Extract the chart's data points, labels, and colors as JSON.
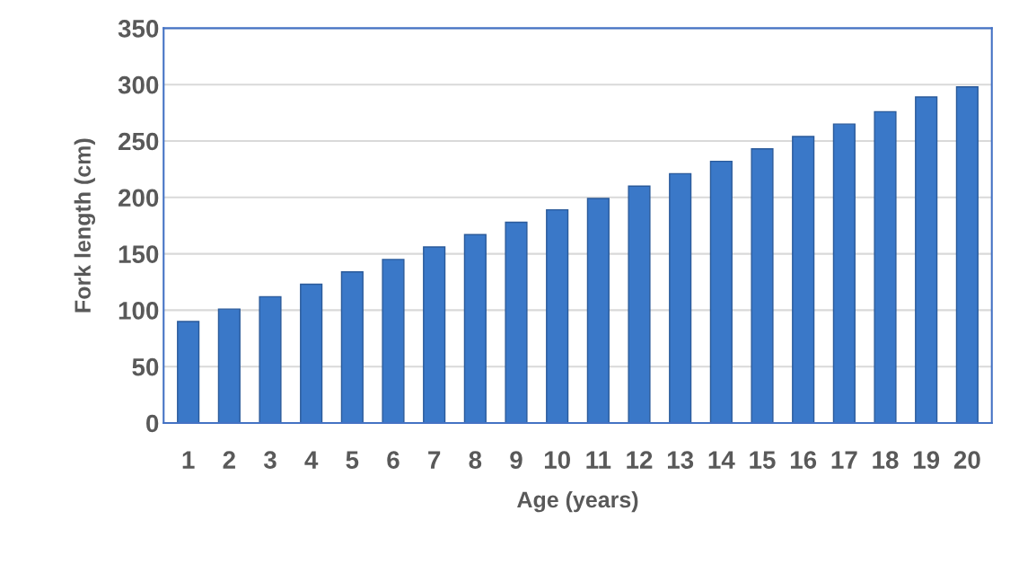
{
  "chart_data": {
    "type": "bar",
    "xlabel": "Age (years)",
    "ylabel": "Fork length (cm)",
    "categories": [
      "1",
      "2",
      "3",
      "4",
      "5",
      "6",
      "7",
      "8",
      "9",
      "10",
      "11",
      "12",
      "13",
      "14",
      "15",
      "16",
      "17",
      "18",
      "19",
      "20"
    ],
    "values": [
      90,
      101,
      112,
      123,
      134,
      145,
      156,
      167,
      178,
      189,
      199,
      210,
      221,
      232,
      243,
      254,
      265,
      276,
      289,
      298
    ],
    "color": "#3a78c8",
    "ylim": [
      0,
      350
    ],
    "yticks": [
      0,
      50,
      100,
      150,
      200,
      250,
      300,
      350
    ],
    "grid": "y",
    "legend": false
  }
}
